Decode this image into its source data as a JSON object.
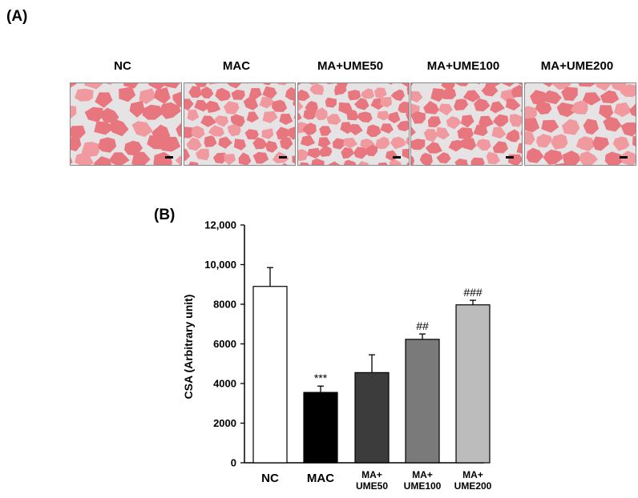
{
  "panel_a": {
    "letter": "(A)",
    "images": [
      {
        "label": "NC"
      },
      {
        "label": "MAC"
      },
      {
        "label": "MA+UME50"
      },
      {
        "label": "MA+UME100"
      },
      {
        "label": "MA+UME200"
      }
    ],
    "colors": {
      "fiber": "#e8767f",
      "fiber_light": "#f09aa0",
      "gap": "#e6e3e5",
      "scale_bar": "#000000"
    }
  },
  "panel_b": {
    "letter": "(B)"
  },
  "chart_data": {
    "type": "bar",
    "ylabel": "CSA (Arbitrary unit)",
    "xlabel": "",
    "ylim": [
      0,
      12000
    ],
    "yticks": [
      0,
      2000,
      4000,
      6000,
      8000,
      10000,
      12000
    ],
    "ytick_labels": [
      "0",
      "2000",
      "4000",
      "6000",
      "8000",
      "10,000",
      "12,000"
    ],
    "categories": [
      {
        "lines": [
          "NC"
        ],
        "style": "large"
      },
      {
        "lines": [
          "MAC"
        ],
        "style": "large"
      },
      {
        "lines": [
          "MA+",
          "UME50"
        ],
        "style": "small"
      },
      {
        "lines": [
          "MA+",
          "UME100"
        ],
        "style": "small"
      },
      {
        "lines": [
          "MA+",
          "UME200"
        ],
        "style": "small"
      }
    ],
    "values": [
      8900,
      3550,
      4550,
      6230,
      7970
    ],
    "errors": [
      950,
      320,
      900,
      270,
      230
    ],
    "annotations": [
      "",
      "***",
      "",
      "##",
      "###"
    ],
    "colors": [
      "#ffffff",
      "#000000",
      "#3c3c3c",
      "#7a7a7a",
      "#bcbcbc"
    ],
    "grid": false,
    "legend": "none"
  }
}
